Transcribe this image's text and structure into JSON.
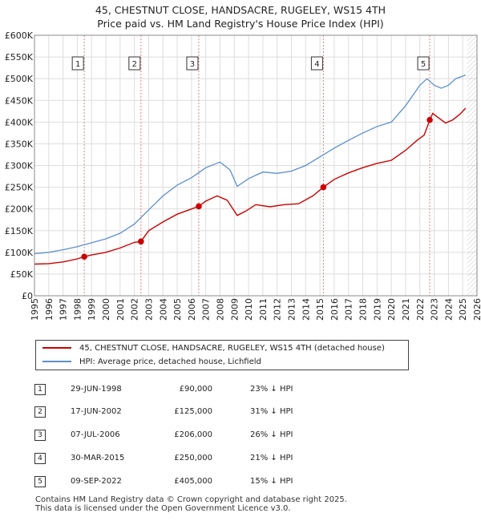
{
  "title": {
    "line1": "45, CHESTNUT CLOSE, HANDSACRE, RUGELEY, WS15 4TH",
    "line2": "Price paid vs. HM Land Registry's House Price Index (HPI)"
  },
  "colors": {
    "property": "#cc0000",
    "hpi": "#5b8fd0",
    "grid": "#dddddd",
    "vline": "#e88080",
    "future_hatch": "#bbbbbb"
  },
  "chart_data": {
    "type": "line",
    "title": "45, CHESTNUT CLOSE, HANDSACRE, RUGELEY, WS15 4TH — Price paid vs. HM Land Registry's House Price Index (HPI)",
    "xlabel": "",
    "ylabel": "",
    "xlim": [
      1995,
      2026
    ],
    "ylim": [
      0,
      600000
    ],
    "x_ticks": [
      1995,
      1996,
      1997,
      1998,
      1999,
      2000,
      2001,
      2002,
      2003,
      2004,
      2005,
      2006,
      2007,
      2008,
      2009,
      2010,
      2011,
      2012,
      2013,
      2014,
      2015,
      2016,
      2017,
      2018,
      2019,
      2020,
      2021,
      2022,
      2023,
      2024,
      2025,
      2026
    ],
    "y_ticks": [
      0,
      50000,
      100000,
      150000,
      200000,
      250000,
      300000,
      350000,
      400000,
      450000,
      500000,
      550000,
      600000
    ],
    "y_tick_labels": [
      "£0",
      "£50K",
      "£100K",
      "£150K",
      "£200K",
      "£250K",
      "£300K",
      "£350K",
      "£400K",
      "£450K",
      "£500K",
      "£550K",
      "£600K"
    ],
    "grid": true,
    "data_end_year": 2025.3,
    "series": [
      {
        "name": "45, CHESTNUT CLOSE, HANDSACRE, RUGELEY, WS15 4TH (detached house)",
        "points": [
          [
            1995.0,
            73000
          ],
          [
            1996.0,
            74000
          ],
          [
            1997.0,
            78000
          ],
          [
            1998.0,
            85000
          ],
          [
            1998.49,
            90000
          ],
          [
            1999.0,
            94000
          ],
          [
            2000.0,
            100000
          ],
          [
            2001.0,
            110000
          ],
          [
            2002.0,
            123000
          ],
          [
            2002.46,
            125000
          ],
          [
            2003.0,
            150000
          ],
          [
            2004.0,
            170000
          ],
          [
            2005.0,
            188000
          ],
          [
            2006.0,
            200000
          ],
          [
            2006.51,
            206000
          ],
          [
            2007.0,
            218000
          ],
          [
            2007.8,
            230000
          ],
          [
            2008.5,
            220000
          ],
          [
            2009.2,
            185000
          ],
          [
            2009.8,
            195000
          ],
          [
            2010.5,
            210000
          ],
          [
            2011.5,
            205000
          ],
          [
            2012.5,
            210000
          ],
          [
            2013.5,
            212000
          ],
          [
            2014.5,
            230000
          ],
          [
            2015.24,
            250000
          ],
          [
            2016.0,
            268000
          ],
          [
            2017.0,
            283000
          ],
          [
            2018.0,
            295000
          ],
          [
            2019.0,
            305000
          ],
          [
            2020.0,
            312000
          ],
          [
            2021.0,
            335000
          ],
          [
            2021.8,
            358000
          ],
          [
            2022.3,
            370000
          ],
          [
            2022.69,
            405000
          ],
          [
            2022.9,
            420000
          ],
          [
            2023.3,
            410000
          ],
          [
            2023.8,
            398000
          ],
          [
            2024.3,
            405000
          ],
          [
            2024.8,
            418000
          ],
          [
            2025.2,
            432000
          ]
        ]
      },
      {
        "name": "HPI: Average price, detached house, Lichfield",
        "points": [
          [
            1995.0,
            97000
          ],
          [
            1996.0,
            100000
          ],
          [
            1997.0,
            106000
          ],
          [
            1998.0,
            113000
          ],
          [
            1999.0,
            122000
          ],
          [
            2000.0,
            131000
          ],
          [
            2001.0,
            144000
          ],
          [
            2002.0,
            165000
          ],
          [
            2003.0,
            198000
          ],
          [
            2004.0,
            230000
          ],
          [
            2005.0,
            255000
          ],
          [
            2006.0,
            272000
          ],
          [
            2007.0,
            295000
          ],
          [
            2008.0,
            308000
          ],
          [
            2008.7,
            290000
          ],
          [
            2009.2,
            252000
          ],
          [
            2010.0,
            270000
          ],
          [
            2011.0,
            285000
          ],
          [
            2012.0,
            282000
          ],
          [
            2013.0,
            287000
          ],
          [
            2014.0,
            300000
          ],
          [
            2015.0,
            320000
          ],
          [
            2016.0,
            340000
          ],
          [
            2017.0,
            358000
          ],
          [
            2018.0,
            375000
          ],
          [
            2019.0,
            390000
          ],
          [
            2020.0,
            400000
          ],
          [
            2021.0,
            438000
          ],
          [
            2022.0,
            485000
          ],
          [
            2022.5,
            500000
          ],
          [
            2023.0,
            485000
          ],
          [
            2023.5,
            478000
          ],
          [
            2024.0,
            485000
          ],
          [
            2024.5,
            500000
          ],
          [
            2025.2,
            508000
          ]
        ]
      }
    ],
    "sale_markers": [
      {
        "label": "1",
        "year": 1998.49,
        "price": 90000
      },
      {
        "label": "2",
        "year": 2002.46,
        "price": 125000
      },
      {
        "label": "3",
        "year": 2006.51,
        "price": 206000
      },
      {
        "label": "4",
        "year": 2015.24,
        "price": 250000
      },
      {
        "label": "5",
        "year": 2022.69,
        "price": 405000
      }
    ]
  },
  "legend": {
    "property_label": "45, CHESTNUT CLOSE, HANDSACRE, RUGELEY, WS15 4TH (detached house)",
    "hpi_label": "HPI: Average price, detached house, Lichfield"
  },
  "sales": [
    {
      "num": "1",
      "date": "29-JUN-1998",
      "price": "£90,000",
      "hpi": "23% ↓ HPI"
    },
    {
      "num": "2",
      "date": "17-JUN-2002",
      "price": "£125,000",
      "hpi": "31% ↓ HPI"
    },
    {
      "num": "3",
      "date": "07-JUL-2006",
      "price": "£206,000",
      "hpi": "26% ↓ HPI"
    },
    {
      "num": "4",
      "date": "30-MAR-2015",
      "price": "£250,000",
      "hpi": "21% ↓ HPI"
    },
    {
      "num": "5",
      "date": "09-SEP-2022",
      "price": "£405,000",
      "hpi": "15% ↓ HPI"
    }
  ],
  "footer": {
    "line1": "Contains HM Land Registry data © Crown copyright and database right 2025.",
    "line2": "This data is licensed under the Open Government Licence v3.0."
  }
}
